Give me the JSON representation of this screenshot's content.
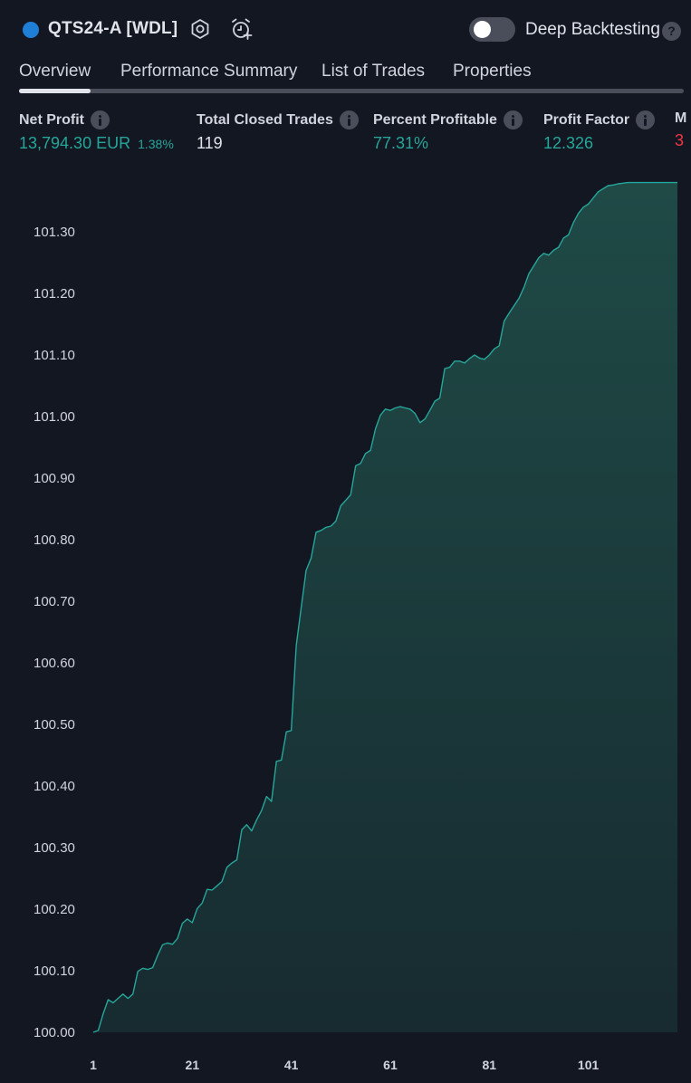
{
  "header": {
    "strategy_title": "QTS24-A [WDL]",
    "deep_backtesting_label": "Deep Backtesting",
    "deep_backtesting_enabled": false,
    "help_glyph": "?",
    "colors": {
      "strategy_dot": "#1f7fd6",
      "background": "#131722"
    }
  },
  "tabs": [
    {
      "label": "Overview",
      "active": true
    },
    {
      "label": "Performance Summary",
      "active": false
    },
    {
      "label": "List of Trades",
      "active": false
    },
    {
      "label": "Properties",
      "active": false
    }
  ],
  "metrics": [
    {
      "label": "Net Profit",
      "value": "13,794.30 EUR",
      "sub": "1.38%",
      "color": "green"
    },
    {
      "label": "Total Closed Trades",
      "value": "119",
      "sub": "",
      "color": "white"
    },
    {
      "label": "Percent Profitable",
      "value": "77.31%",
      "sub": "",
      "color": "green"
    },
    {
      "label": "Profit Factor",
      "value": "12.326",
      "sub": "",
      "color": "green"
    },
    {
      "label": "M",
      "value": "3",
      "sub": "",
      "color": "red"
    }
  ],
  "chart_data": {
    "type": "area",
    "title": "",
    "xlabel": "",
    "ylabel": "",
    "x_ticks": [
      1,
      21,
      41,
      61,
      81,
      101
    ],
    "y_ticks": [
      "100.00",
      "100.10",
      "100.20",
      "100.30",
      "100.40",
      "100.50",
      "100.60",
      "100.70",
      "100.80",
      "100.90",
      "101.00",
      "101.10",
      "101.20",
      "101.30"
    ],
    "xlim": [
      1,
      119
    ],
    "ylim": [
      100.0,
      101.38
    ],
    "grid": false,
    "line_color": "#26a69a",
    "fill_top_color": "#1f4a46",
    "fill_bottom_color": "#172b30",
    "series": [
      {
        "x": [
          1,
          2,
          3,
          4,
          5,
          6,
          7,
          8,
          9,
          10,
          11,
          12,
          13,
          14,
          15,
          16,
          17,
          18,
          19,
          20,
          21,
          22,
          23,
          24,
          25,
          26,
          27,
          28,
          29,
          30,
          31,
          32,
          33,
          34,
          35,
          36,
          37,
          38,
          39,
          40,
          41,
          42,
          43,
          44,
          45,
          46,
          47,
          48,
          49,
          50,
          51,
          52,
          53,
          54,
          55,
          56,
          57,
          58,
          59,
          60,
          61,
          62,
          63,
          64,
          65,
          66,
          67,
          68,
          69,
          70,
          71,
          72,
          73,
          74,
          75,
          76,
          77,
          78,
          79,
          80,
          81,
          82,
          83,
          84,
          85,
          86,
          87,
          88,
          89,
          90,
          91,
          92,
          93,
          94,
          95,
          96,
          97,
          98,
          99,
          100,
          101,
          102,
          103,
          104,
          105,
          106,
          107,
          108,
          109,
          110,
          111,
          112,
          113,
          114,
          115,
          116,
          117,
          118,
          119
        ],
        "y": [
          100.0,
          100.003,
          100.03,
          100.053,
          100.048,
          100.055,
          100.062,
          100.055,
          100.062,
          100.099,
          100.104,
          100.102,
          100.105,
          100.125,
          100.142,
          100.145,
          100.143,
          100.152,
          100.177,
          100.184,
          100.178,
          100.201,
          100.21,
          100.232,
          100.231,
          100.238,
          100.245,
          100.268,
          100.275,
          100.28,
          100.329,
          100.337,
          100.327,
          100.345,
          100.36,
          100.383,
          100.375,
          100.44,
          100.442,
          100.488,
          100.49,
          100.628,
          100.69,
          100.75,
          100.77,
          100.812,
          100.815,
          100.82,
          100.822,
          100.83,
          100.855,
          100.864,
          100.873,
          100.92,
          100.924,
          100.94,
          100.945,
          100.98,
          101.002,
          101.012,
          101.01,
          101.014,
          101.016,
          101.014,
          101.012,
          101.005,
          100.99,
          100.996,
          101.01,
          101.025,
          101.03,
          101.078,
          101.08,
          101.09,
          101.09,
          101.087,
          101.094,
          101.1,
          101.095,
          101.093,
          101.1,
          101.11,
          101.115,
          101.155,
          101.168,
          101.18,
          101.192,
          101.21,
          101.232,
          101.245,
          101.258,
          101.265,
          101.262,
          101.27,
          101.275,
          101.29,
          101.295,
          101.315,
          101.33,
          101.34,
          101.345,
          101.355,
          101.365,
          101.37,
          101.375,
          101.376,
          101.378,
          101.379,
          101.38,
          101.38,
          101.38,
          101.38,
          101.38,
          101.38,
          101.38,
          101.38,
          101.38,
          101.38,
          101.38
        ]
      }
    ]
  }
}
